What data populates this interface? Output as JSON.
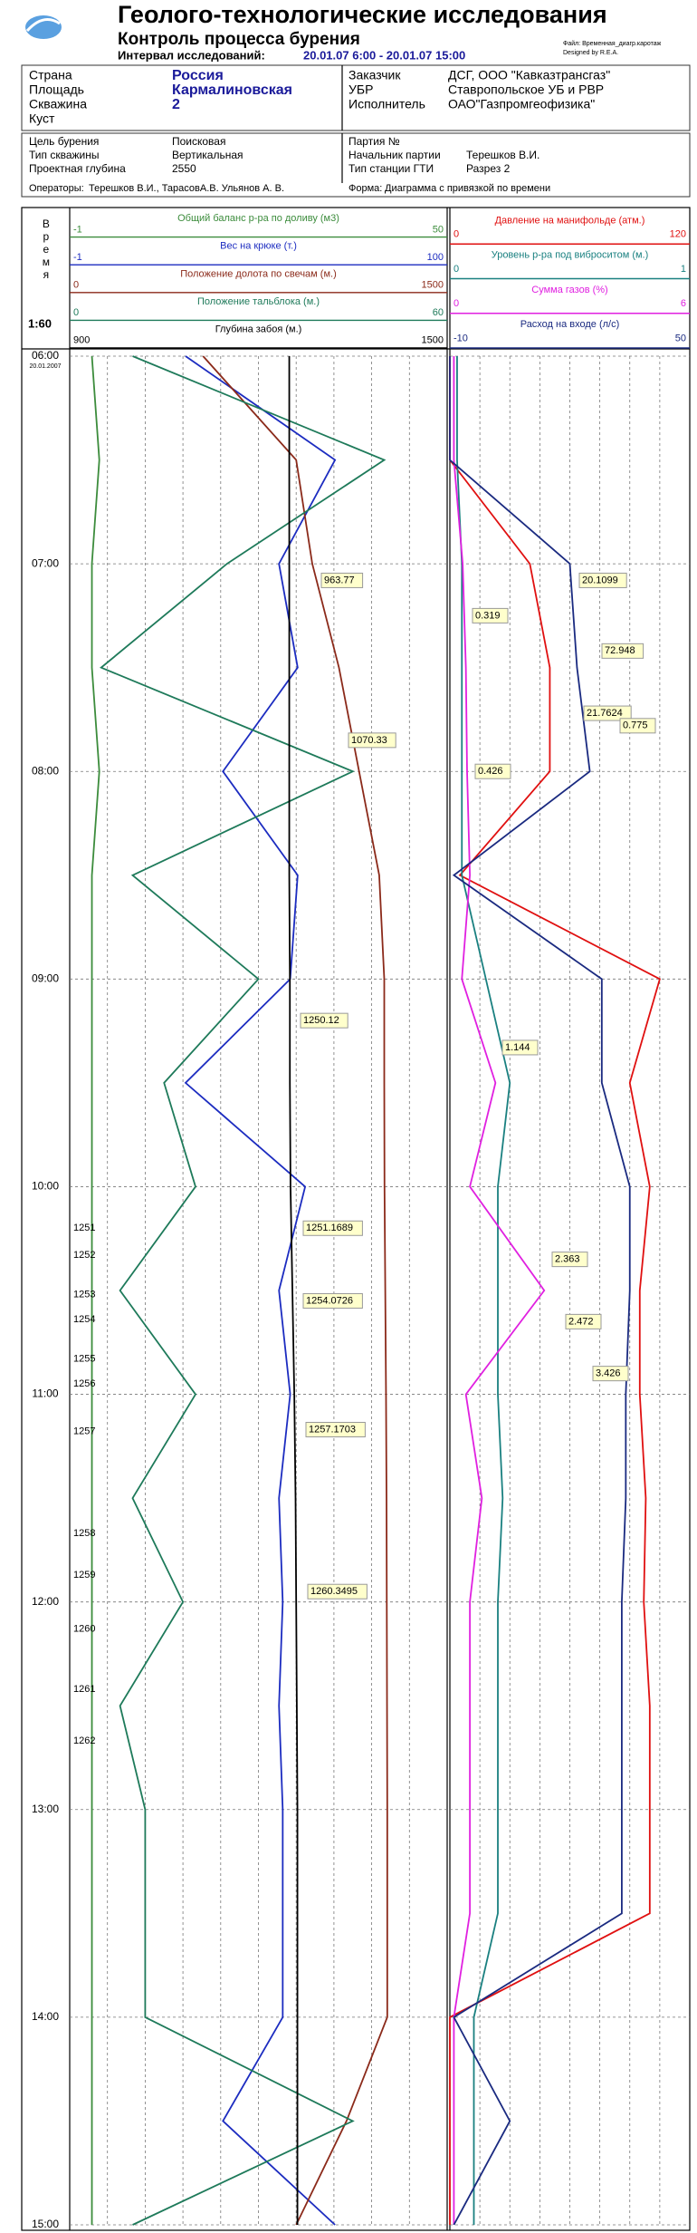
{
  "header": {
    "title": "Геолого-технологические исследования",
    "subtitle": "Контроль процесса бурения",
    "interval_label": "Интервал исследований:",
    "interval": "20.01.07 6:00 - 20.01.07 15:00",
    "file": "Файл: Временная_диагр.каротаж",
    "designed": "Designed by R.E.A."
  },
  "info_left": [
    [
      "Страна",
      "Россия"
    ],
    [
      "Площадь",
      "Кармалиновская"
    ],
    [
      "Скважина",
      "2"
    ],
    [
      "Куст"
    ]
  ],
  "info_right": [
    [
      "Заказчик",
      "ДСГ, ООО \"Кавказтрансгаз\""
    ],
    [
      "УБР",
      "Ставропольское УБ и РВР"
    ],
    [
      "Исполнитель",
      "ОАО\"Газпромгеофизика\""
    ]
  ],
  "well_left": [
    [
      "Цель бурения",
      "Поисковая"
    ],
    [
      "Тип скважины",
      "Вертикальная"
    ],
    [
      "Проектная глубина",
      "2550"
    ]
  ],
  "well_right": [
    [
      "Партия №"
    ],
    [
      "Начальник партии",
      "Терешков В.И."
    ],
    [
      "Тип станции ГТИ",
      "Разрез 2"
    ]
  ],
  "operators": [
    "Операторы:",
    "Терешков В.И., ТарасовА.В. Ульянов А. В."
  ],
  "form": [
    "Форма:",
    "Диаграмма с привязкой по времени"
  ],
  "time_axis": {
    "label": "Время",
    "scale": "1:60",
    "date": "20.01.2007",
    "ylim": [
      6,
      15
    ],
    "yticks": [
      {
        "value": 6,
        "label": "06:00"
      },
      {
        "value": 7,
        "label": "07:00"
      },
      {
        "value": 8,
        "label": "08:00"
      },
      {
        "value": 9,
        "label": "09:00"
      },
      {
        "value": 10,
        "label": "10:00"
      },
      {
        "value": 11,
        "label": "11:00"
      },
      {
        "value": 12,
        "label": "12:00"
      },
      {
        "value": 13,
        "label": "13:00"
      },
      {
        "value": 14,
        "label": "14:00"
      },
      {
        "value": 15,
        "label": "15:00"
      }
    ]
  },
  "chart_data": [
    {
      "type": "line",
      "x": [
        6,
        6.5,
        7,
        7.5,
        8,
        8.5,
        9,
        9.5,
        10,
        10.5,
        11,
        11.5,
        12,
        12.5,
        13,
        13.5,
        14,
        14.5,
        15
      ],
      "series": [
        {
          "name": "Общий баланс р-ра по доливу (м3)",
          "color": "#3c8c3c",
          "xlim": [
            -1,
            50
          ],
          "values": [
            2,
            3,
            2,
            2,
            3,
            2,
            2,
            2,
            2,
            2,
            2,
            2,
            2,
            2,
            2,
            2,
            2,
            2,
            2
          ]
        },
        {
          "name": "Вес на крюке (т.)",
          "color": "#1c2cc0",
          "xlim": [
            -1,
            100
          ],
          "values": [
            30,
            70,
            55,
            60,
            40,
            60,
            58,
            30,
            62,
            55,
            58,
            55,
            56,
            55,
            56,
            56,
            56,
            40,
            70
          ]
        },
        {
          "name": "Положение долота по свечам (м.)",
          "color": "#8b2a1a",
          "xlim": [
            0,
            1500
          ],
          "values": [
            530,
            900,
            964,
            1070,
            1150,
            1230,
            1250,
            1250,
            1251,
            1254,
            1257,
            1259,
            1260,
            1261,
            1262,
            1262,
            1262,
            1100,
            900
          ]
        },
        {
          "name": "Положение тальблока (м.)",
          "color": "#1e7a5a",
          "xlim": [
            0,
            60
          ],
          "values": [
            10,
            50,
            25,
            5,
            45,
            10,
            30,
            15,
            20,
            8,
            20,
            10,
            18,
            8,
            12,
            12,
            12,
            45,
            10
          ]
        },
        {
          "name": "Глубина забоя (м.)",
          "color": "#000000",
          "xlim": [
            900,
            1500
          ],
          "values": [
            1249,
            1249,
            1249,
            1249,
            1249,
            1249,
            1250,
            1250,
            1251,
            1254,
            1257,
            1259,
            1260,
            1261,
            1262,
            1262,
            1262,
            1262,
            1262
          ]
        }
      ],
      "annotations": [
        "963.77",
        "1070.33",
        "1250.12",
        "1251.1689",
        "1254.0726",
        "1257.1703",
        "1260.3495"
      ],
      "depth_labels": [
        1251,
        1252,
        1253,
        1254,
        1255,
        1256,
        1257,
        1258,
        1259,
        1260,
        1261,
        1262
      ]
    },
    {
      "type": "line",
      "x": [
        6,
        6.5,
        7,
        7.5,
        8,
        8.5,
        9,
        9.5,
        10,
        10.5,
        11,
        11.5,
        12,
        12.5,
        13,
        13.5,
        14,
        14.5,
        15
      ],
      "series": [
        {
          "name": "Давление на манифольде (атм.)",
          "color": "#e01010",
          "xlim": [
            0,
            120
          ],
          "values": [
            0,
            0,
            40,
            50,
            50,
            5,
            105,
            90,
            100,
            95,
            95,
            98,
            97,
            100,
            100,
            100,
            0,
            0,
            0
          ]
        },
        {
          "name": "Уровень р-ра под виброситом (м.)",
          "color": "#1a8080",
          "xlim": [
            0,
            1
          ],
          "values": [
            0.03,
            0.03,
            0.05,
            0.05,
            0.05,
            0.05,
            0.15,
            0.25,
            0.2,
            0.2,
            0.2,
            0.22,
            0.2,
            0.2,
            0.2,
            0.2,
            0.1,
            0.1,
            0.1
          ]
        },
        {
          "name": "Сумма газов (%)",
          "color": "#e020e0",
          "xlim": [
            0,
            6
          ],
          "values": [
            0.1,
            0.1,
            0.32,
            0.4,
            0.43,
            0.5,
            0.3,
            1.14,
            0.5,
            2.36,
            0.4,
            0.8,
            0.5,
            0.5,
            0.5,
            0.5,
            0.1,
            0.1,
            0.1
          ]
        },
        {
          "name": "Расход на входе (л/с)",
          "color": "#1a2a80",
          "xlim": [
            -10,
            50
          ],
          "values": [
            -10,
            -10,
            20,
            21.8,
            25,
            -9,
            28,
            28,
            35,
            35,
            34,
            34,
            33,
            33,
            33,
            33,
            -9,
            5,
            -9
          ]
        }
      ],
      "annotations": [
        "20.1099",
        "72.948",
        "0.319",
        "21.7624",
        "0.775",
        "0.426",
        "1.144",
        "2.363",
        "2.472",
        "3.426"
      ]
    }
  ]
}
